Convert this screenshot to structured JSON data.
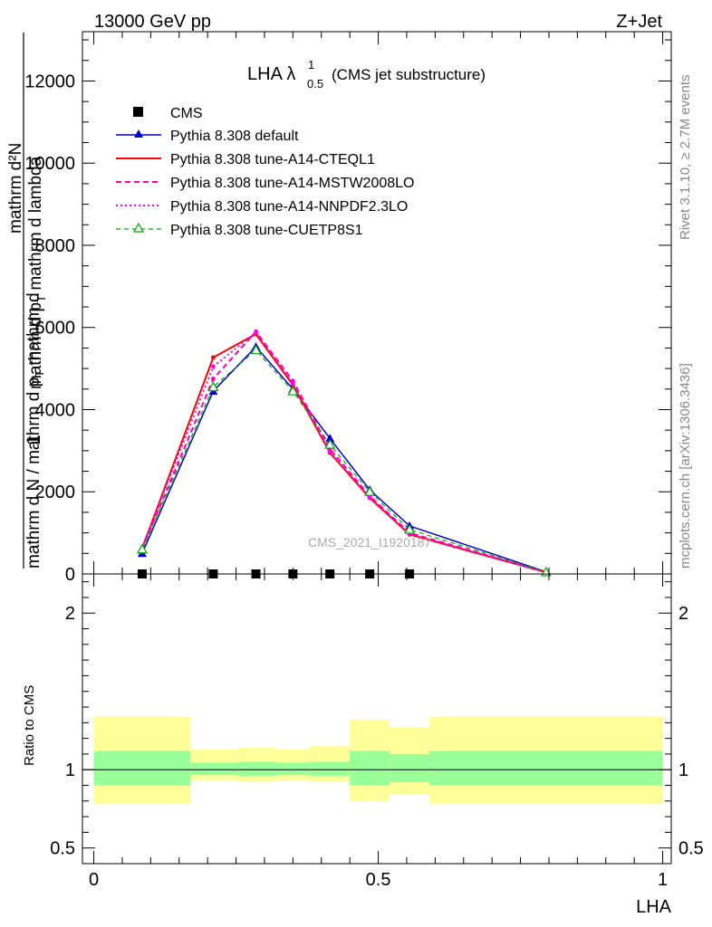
{
  "header": {
    "left": "13000 GeV pp",
    "right": "Z+Jet"
  },
  "side_labels": {
    "rivet": "Rivet 3.1.10, ≥ 2.7M events",
    "mcplots": "mcplots.cern.ch [arXiv:1306.3436]"
  },
  "watermark": "CMS_2021_I1920187",
  "colors": {
    "cms": "#000000",
    "default": "#0000cc",
    "cteql1": "#ff0000",
    "mstw": "#ff00aa",
    "nnpdf": "#ff00ff",
    "cuetp8s1": "#00aa00",
    "band_inner": "#99ff99",
    "band_outer": "#ffff99"
  },
  "chart_data": [
    {
      "type": "line",
      "title": "LHA",
      "title_lambda": "λ",
      "title_sub": "0.5",
      "title_sup": "1",
      "title_note": "(CMS jet substructure)",
      "ylabel_num": "1",
      "ylabel_den": "mathrm d N / mathrm d p",
      "ylabel_tail": "mathrm d",
      "ylabel_main": "mathrm d²N",
      "ylabel_mid": "mathrm d p",
      "ylabel_sub": "T",
      "ylabel_end": " mathrm d lambda",
      "ylim": [
        0,
        13200
      ],
      "yticks": [
        0,
        2000,
        4000,
        6000,
        8000,
        10000,
        12000
      ],
      "ytick_labels": [
        "0",
        "2000",
        "4000",
        "6000",
        "8000",
        "10000",
        "12000"
      ],
      "series": [
        {
          "name": "CMS",
          "style": "cms-marker",
          "x": [
            0.085,
            0.21,
            0.285,
            0.35,
            0.415,
            0.485,
            0.555
          ],
          "values": [
            0,
            0,
            0,
            0,
            0,
            0,
            0
          ]
        },
        {
          "name": "Pythia 8.308 default",
          "style": "solid-triangle",
          "x": [
            0.085,
            0.21,
            0.285,
            0.35,
            0.415,
            0.485,
            0.555,
            0.795
          ],
          "values": [
            500,
            4450,
            5530,
            4500,
            3300,
            2050,
            1170,
            50
          ]
        },
        {
          "name": "Pythia 8.308 tune-A14-CTEQL1",
          "style": "solid",
          "x": [
            0.085,
            0.21,
            0.285,
            0.35,
            0.415,
            0.485,
            0.555,
            0.795
          ],
          "values": [
            620,
            5270,
            5840,
            4600,
            2950,
            1850,
            960,
            40
          ]
        },
        {
          "name": "Pythia 8.308 tune-A14-MSTW2008LO",
          "style": "dashed",
          "x": [
            0.085,
            0.21,
            0.285,
            0.35,
            0.415,
            0.485,
            0.555,
            0.795
          ],
          "values": [
            600,
            4750,
            5900,
            4700,
            3050,
            1900,
            1000,
            40
          ]
        },
        {
          "name": "Pythia 8.308 tune-A14-NNPDF2.3LO",
          "style": "dotted",
          "x": [
            0.085,
            0.21,
            0.285,
            0.35,
            0.415,
            0.485,
            0.555,
            0.795
          ],
          "values": [
            640,
            5050,
            5880,
            4650,
            2980,
            1870,
            980,
            40
          ]
        },
        {
          "name": "Pythia 8.308 tune-CUETP8S1",
          "style": "dashed-open-triangle",
          "x": [
            0.085,
            0.21,
            0.285,
            0.35,
            0.415,
            0.485,
            0.555,
            0.795
          ],
          "values": [
            600,
            4550,
            5450,
            4450,
            3150,
            2000,
            1080,
            45
          ]
        }
      ]
    },
    {
      "type": "area",
      "ylabel": "Ratio to CMS",
      "xlabel": "LHA",
      "ylim": [
        0.4,
        2.25
      ],
      "yticks": [
        0.5,
        1,
        2
      ],
      "ytick_labels": [
        "0.5",
        "1",
        "2"
      ],
      "xlim": [
        -0.02,
        1.015
      ],
      "xticks": [
        0,
        0.5,
        1
      ],
      "xtick_labels": [
        "0",
        "0.5",
        "1"
      ],
      "bins": [
        {
          "x0": 0.0,
          "x1": 0.17,
          "inner": [
            0.9,
            1.12
          ],
          "outer": [
            0.78,
            1.34
          ]
        },
        {
          "x0": 0.17,
          "x1": 0.255,
          "inner": [
            0.965,
            1.045
          ],
          "outer": [
            0.93,
            1.13
          ]
        },
        {
          "x0": 0.255,
          "x1": 0.32,
          "inner": [
            0.96,
            1.05
          ],
          "outer": [
            0.92,
            1.14
          ]
        },
        {
          "x0": 0.32,
          "x1": 0.38,
          "inner": [
            0.965,
            1.045
          ],
          "outer": [
            0.93,
            1.13
          ]
        },
        {
          "x0": 0.38,
          "x1": 0.45,
          "inner": [
            0.96,
            1.05
          ],
          "outer": [
            0.92,
            1.15
          ]
        },
        {
          "x0": 0.45,
          "x1": 0.52,
          "inner": [
            0.9,
            1.12
          ],
          "outer": [
            0.8,
            1.32
          ]
        },
        {
          "x0": 0.52,
          "x1": 0.59,
          "inner": [
            0.92,
            1.1
          ],
          "outer": [
            0.84,
            1.27
          ]
        },
        {
          "x0": 0.59,
          "x1": 1.0,
          "inner": [
            0.9,
            1.12
          ],
          "outer": [
            0.78,
            1.34
          ]
        }
      ],
      "reference_line": 1
    }
  ]
}
